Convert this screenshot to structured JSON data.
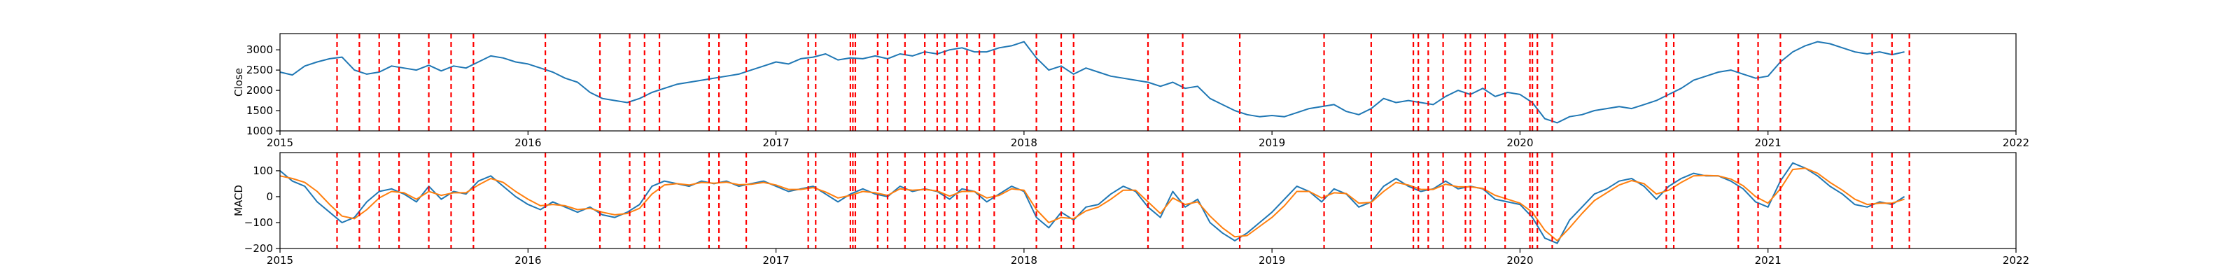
{
  "chart_data": [
    {
      "type": "line",
      "ylabel": "Close",
      "xlabel": "",
      "xlim": [
        2015.0,
        2022.0
      ],
      "ylim": [
        1000,
        3400
      ],
      "xticks": [
        {
          "value": 2015,
          "label": "2015"
        },
        {
          "value": 2016,
          "label": "2016"
        },
        {
          "value": 2017,
          "label": "2017"
        },
        {
          "value": 2018,
          "label": "2018"
        },
        {
          "value": 2019,
          "label": "2019"
        },
        {
          "value": 2020,
          "label": "2020"
        },
        {
          "value": 2021,
          "label": "2021"
        },
        {
          "value": 2022,
          "label": "2022"
        }
      ],
      "yticks": [
        {
          "value": 1000,
          "label": "1000"
        },
        {
          "value": 1500,
          "label": "1500"
        },
        {
          "value": 2000,
          "label": "2000"
        },
        {
          "value": 2500,
          "label": "2500"
        },
        {
          "value": 3000,
          "label": "3000"
        }
      ],
      "grid": false,
      "colors": {
        "line": "#1f77b4",
        "events": "#ff0000"
      },
      "series": [
        {
          "x": [
            2015.0,
            2015.05,
            2015.1,
            2015.15,
            2015.2,
            2015.25,
            2015.3,
            2015.35,
            2015.4,
            2015.45,
            2015.5,
            2015.55,
            2015.6,
            2015.65,
            2015.7,
            2015.75,
            2015.8,
            2015.85,
            2015.9,
            2015.95,
            2016.0,
            2016.05,
            2016.1,
            2016.15,
            2016.2,
            2016.25,
            2016.3,
            2016.35,
            2016.4,
            2016.45,
            2016.5,
            2016.55,
            2016.6,
            2016.65,
            2016.7,
            2016.75,
            2016.8,
            2016.85,
            2016.9,
            2016.95,
            2017.0,
            2017.05,
            2017.1,
            2017.15,
            2017.2,
            2017.25,
            2017.3,
            2017.35,
            2017.4,
            2017.45,
            2017.5,
            2017.55,
            2017.6,
            2017.65,
            2017.7,
            2017.75,
            2017.8,
            2017.85,
            2017.9,
            2017.95,
            2018.0,
            2018.05,
            2018.1,
            2018.15,
            2018.2,
            2018.25,
            2018.3,
            2018.35,
            2018.4,
            2018.45,
            2018.5,
            2018.55,
            2018.6,
            2018.65,
            2018.7,
            2018.75,
            2018.8,
            2018.85,
            2018.9,
            2018.95,
            2019.0,
            2019.05,
            2019.1,
            2019.15,
            2019.2,
            2019.25,
            2019.3,
            2019.35,
            2019.4,
            2019.45,
            2019.5,
            2019.55,
            2019.6,
            2019.65,
            2019.7,
            2019.75,
            2019.8,
            2019.85,
            2019.9,
            2019.95,
            2020.0,
            2020.05,
            2020.1,
            2020.15,
            2020.2,
            2020.25,
            2020.3,
            2020.35,
            2020.4,
            2020.45,
            2020.5,
            2020.55,
            2020.6,
            2020.65,
            2020.7,
            2020.75,
            2020.8,
            2020.85,
            2020.9,
            2020.95,
            2021.0,
            2021.05,
            2021.1,
            2021.15,
            2021.2,
            2021.25,
            2021.3,
            2021.35,
            2021.4,
            2021.45,
            2021.5,
            2021.55
          ],
          "y": [
            2450,
            2380,
            2600,
            2700,
            2780,
            2820,
            2500,
            2400,
            2450,
            2600,
            2550,
            2500,
            2620,
            2480,
            2600,
            2550,
            2700,
            2850,
            2800,
            2700,
            2650,
            2550,
            2450,
            2300,
            2200,
            1950,
            1800,
            1750,
            1700,
            1800,
            1950,
            2050,
            2150,
            2200,
            2250,
            2300,
            2350,
            2400,
            2500,
            2600,
            2700,
            2650,
            2780,
            2820,
            2900,
            2750,
            2800,
            2780,
            2850,
            2780,
            2900,
            2850,
            2950,
            2900,
            3000,
            3050,
            2950,
            2950,
            3050,
            3100,
            3200,
            2800,
            2500,
            2600,
            2400,
            2550,
            2450,
            2350,
            2300,
            2250,
            2200,
            2100,
            2200,
            2050,
            2100,
            1800,
            1650,
            1500,
            1400,
            1350,
            1380,
            1350,
            1450,
            1550,
            1600,
            1650,
            1480,
            1400,
            1550,
            1800,
            1700,
            1750,
            1700,
            1650,
            1850,
            2000,
            1900,
            2050,
            1850,
            1950,
            1900,
            1700,
            1300,
            1200,
            1350,
            1400,
            1500,
            1550,
            1600,
            1550,
            1650,
            1750,
            1900,
            2050,
            2250,
            2350,
            2450,
            2500,
            2400,
            2300,
            2350,
            2700,
            2950,
            3100,
            3200,
            3150,
            3050,
            2950,
            2900,
            2950,
            2880,
            2950
          ]
        }
      ]
    },
    {
      "type": "line",
      "ylabel": "MACD",
      "xlabel": "",
      "xlim": [
        2015.0,
        2022.0
      ],
      "ylim": [
        -200,
        170
      ],
      "xticks": [
        {
          "value": 2015,
          "label": "2015"
        },
        {
          "value": 2016,
          "label": "2016"
        },
        {
          "value": 2017,
          "label": "2017"
        },
        {
          "value": 2018,
          "label": "2018"
        },
        {
          "value": 2019,
          "label": "2019"
        },
        {
          "value": 2020,
          "label": "2020"
        },
        {
          "value": 2021,
          "label": "2021"
        },
        {
          "value": 2022,
          "label": "2022"
        }
      ],
      "yticks": [
        {
          "value": -200,
          "label": "−200"
        },
        {
          "value": -100,
          "label": "−100"
        },
        {
          "value": 0,
          "label": "0"
        },
        {
          "value": 100,
          "label": "100"
        }
      ],
      "grid": false,
      "colors": {
        "macd": "#1f77b4",
        "signal": "#ff7f0e",
        "events": "#ff0000"
      },
      "series": [
        {
          "x": [
            2015.0,
            2015.05,
            2015.1,
            2015.15,
            2015.2,
            2015.25,
            2015.3,
            2015.35,
            2015.4,
            2015.45,
            2015.5,
            2015.55,
            2015.6,
            2015.65,
            2015.7,
            2015.75,
            2015.8,
            2015.85,
            2015.9,
            2015.95,
            2016.0,
            2016.05,
            2016.1,
            2016.15,
            2016.2,
            2016.25,
            2016.3,
            2016.35,
            2016.4,
            2016.45,
            2016.5,
            2016.55,
            2016.6,
            2016.65,
            2016.7,
            2016.75,
            2016.8,
            2016.85,
            2016.9,
            2016.95,
            2017.0,
            2017.05,
            2017.1,
            2017.15,
            2017.2,
            2017.25,
            2017.3,
            2017.35,
            2017.4,
            2017.45,
            2017.5,
            2017.55,
            2017.6,
            2017.65,
            2017.7,
            2017.75,
            2017.8,
            2017.85,
            2017.9,
            2017.95,
            2018.0,
            2018.05,
            2018.1,
            2018.15,
            2018.2,
            2018.25,
            2018.3,
            2018.35,
            2018.4,
            2018.45,
            2018.5,
            2018.55,
            2018.6,
            2018.65,
            2018.7,
            2018.75,
            2018.8,
            2018.85,
            2018.9,
            2018.95,
            2019.0,
            2019.05,
            2019.1,
            2019.15,
            2019.2,
            2019.25,
            2019.3,
            2019.35,
            2019.4,
            2019.45,
            2019.5,
            2019.55,
            2019.6,
            2019.65,
            2019.7,
            2019.75,
            2019.8,
            2019.85,
            2019.9,
            2019.95,
            2020.0,
            2020.05,
            2020.1,
            2020.15,
            2020.2,
            2020.25,
            2020.3,
            2020.35,
            2020.4,
            2020.45,
            2020.5,
            2020.55,
            2020.6,
            2020.65,
            2020.7,
            2020.75,
            2020.8,
            2020.85,
            2020.9,
            2020.95,
            2021.0,
            2021.05,
            2021.1,
            2021.15,
            2021.2,
            2021.25,
            2021.3,
            2021.35,
            2021.4,
            2021.45,
            2021.5,
            2021.55
          ],
          "y": [
            100,
            60,
            40,
            -20,
            -60,
            -100,
            -80,
            -20,
            20,
            30,
            10,
            -20,
            40,
            -10,
            20,
            10,
            60,
            80,
            40,
            0,
            -30,
            -50,
            -20,
            -40,
            -60,
            -40,
            -70,
            -80,
            -60,
            -30,
            40,
            60,
            50,
            40,
            60,
            50,
            60,
            40,
            50,
            60,
            40,
            20,
            30,
            40,
            10,
            -20,
            10,
            30,
            10,
            0,
            40,
            20,
            30,
            20,
            -10,
            30,
            20,
            -20,
            10,
            40,
            20,
            -80,
            -120,
            -60,
            -90,
            -40,
            -30,
            10,
            40,
            20,
            -40,
            -80,
            20,
            -40,
            -10,
            -100,
            -140,
            -170,
            -140,
            -100,
            -60,
            -10,
            40,
            20,
            -20,
            30,
            10,
            -40,
            -20,
            40,
            70,
            40,
            20,
            30,
            60,
            30,
            40,
            30,
            -10,
            -20,
            -30,
            -80,
            -160,
            -180,
            -90,
            -40,
            10,
            30,
            60,
            70,
            40,
            -10,
            40,
            70,
            90,
            80,
            80,
            60,
            30,
            -20,
            -40,
            60,
            130,
            110,
            80,
            40,
            10,
            -30,
            -40,
            -20,
            -30,
            0
          ]
        },
        {
          "x": [
            2015.0,
            2015.05,
            2015.1,
            2015.15,
            2015.2,
            2015.25,
            2015.3,
            2015.35,
            2015.4,
            2015.45,
            2015.5,
            2015.55,
            2015.6,
            2015.65,
            2015.7,
            2015.75,
            2015.8,
            2015.85,
            2015.9,
            2015.95,
            2016.0,
            2016.05,
            2016.1,
            2016.15,
            2016.2,
            2016.25,
            2016.3,
            2016.35,
            2016.4,
            2016.45,
            2016.5,
            2016.55,
            2016.6,
            2016.65,
            2016.7,
            2016.75,
            2016.8,
            2016.85,
            2016.9,
            2016.95,
            2017.0,
            2017.05,
            2017.1,
            2017.15,
            2017.2,
            2017.25,
            2017.3,
            2017.35,
            2017.4,
            2017.45,
            2017.5,
            2017.55,
            2017.6,
            2017.65,
            2017.7,
            2017.75,
            2017.8,
            2017.85,
            2017.9,
            2017.95,
            2018.0,
            2018.05,
            2018.1,
            2018.15,
            2018.2,
            2018.25,
            2018.3,
            2018.35,
            2018.4,
            2018.45,
            2018.5,
            2018.55,
            2018.6,
            2018.65,
            2018.7,
            2018.75,
            2018.8,
            2018.85,
            2018.9,
            2018.95,
            2019.0,
            2019.05,
            2019.1,
            2019.15,
            2019.2,
            2019.25,
            2019.3,
            2019.35,
            2019.4,
            2019.45,
            2019.5,
            2019.55,
            2019.6,
            2019.65,
            2019.7,
            2019.75,
            2019.8,
            2019.85,
            2019.9,
            2019.95,
            2020.0,
            2020.05,
            2020.1,
            2020.15,
            2020.2,
            2020.25,
            2020.3,
            2020.35,
            2020.4,
            2020.45,
            2020.5,
            2020.55,
            2020.6,
            2020.65,
            2020.7,
            2020.75,
            2020.8,
            2020.85,
            2020.9,
            2020.95,
            2021.0,
            2021.05,
            2021.1,
            2021.15,
            2021.2,
            2021.25,
            2021.3,
            2021.35,
            2021.4,
            2021.45,
            2021.5,
            2021.55
          ],
          "y": [
            80,
            70,
            55,
            20,
            -30,
            -75,
            -85,
            -50,
            -5,
            20,
            15,
            -10,
            20,
            5,
            15,
            15,
            45,
            70,
            55,
            20,
            -10,
            -35,
            -30,
            -35,
            -50,
            -45,
            -60,
            -70,
            -65,
            -45,
            10,
            45,
            50,
            45,
            55,
            52,
            56,
            46,
            48,
            55,
            45,
            28,
            28,
            35,
            18,
            -5,
            5,
            20,
            15,
            5,
            30,
            25,
            28,
            22,
            2,
            20,
            20,
            -5,
            5,
            30,
            25,
            -50,
            -100,
            -80,
            -85,
            -55,
            -40,
            -10,
            25,
            25,
            -20,
            -65,
            -5,
            -30,
            -20,
            -75,
            -120,
            -155,
            -150,
            -115,
            -80,
            -35,
            20,
            20,
            -5,
            15,
            12,
            -25,
            -22,
            20,
            55,
            45,
            28,
            28,
            48,
            38,
            38,
            32,
            5,
            -10,
            -25,
            -60,
            -130,
            -170,
            -120,
            -65,
            -15,
            15,
            45,
            62,
            50,
            10,
            25,
            55,
            80,
            82,
            80,
            68,
            42,
            0,
            -25,
            30,
            105,
            110,
            90,
            55,
            25,
            -10,
            -30,
            -25,
            -25,
            -10
          ]
        }
      ]
    }
  ],
  "events": [
    2015.23,
    2015.32,
    2015.4,
    2015.48,
    2015.6,
    2015.69,
    2015.78,
    2016.07,
    2016.29,
    2016.41,
    2016.47,
    2016.53,
    2016.73,
    2016.77,
    2016.88,
    2017.13,
    2017.16,
    2017.3,
    2017.31,
    2017.32,
    2017.41,
    2017.45,
    2017.52,
    2017.6,
    2017.65,
    2017.68,
    2017.73,
    2017.77,
    2017.82,
    2017.88,
    2018.05,
    2018.15,
    2018.2,
    2018.5,
    2018.64,
    2018.87,
    2019.21,
    2019.4,
    2019.57,
    2019.59,
    2019.63,
    2019.69,
    2019.78,
    2019.8,
    2019.86,
    2019.94,
    2020.04,
    2020.05,
    2020.07,
    2020.13,
    2020.59,
    2020.62,
    2020.88,
    2020.96,
    2021.05,
    2021.42,
    2021.5,
    2021.57
  ]
}
